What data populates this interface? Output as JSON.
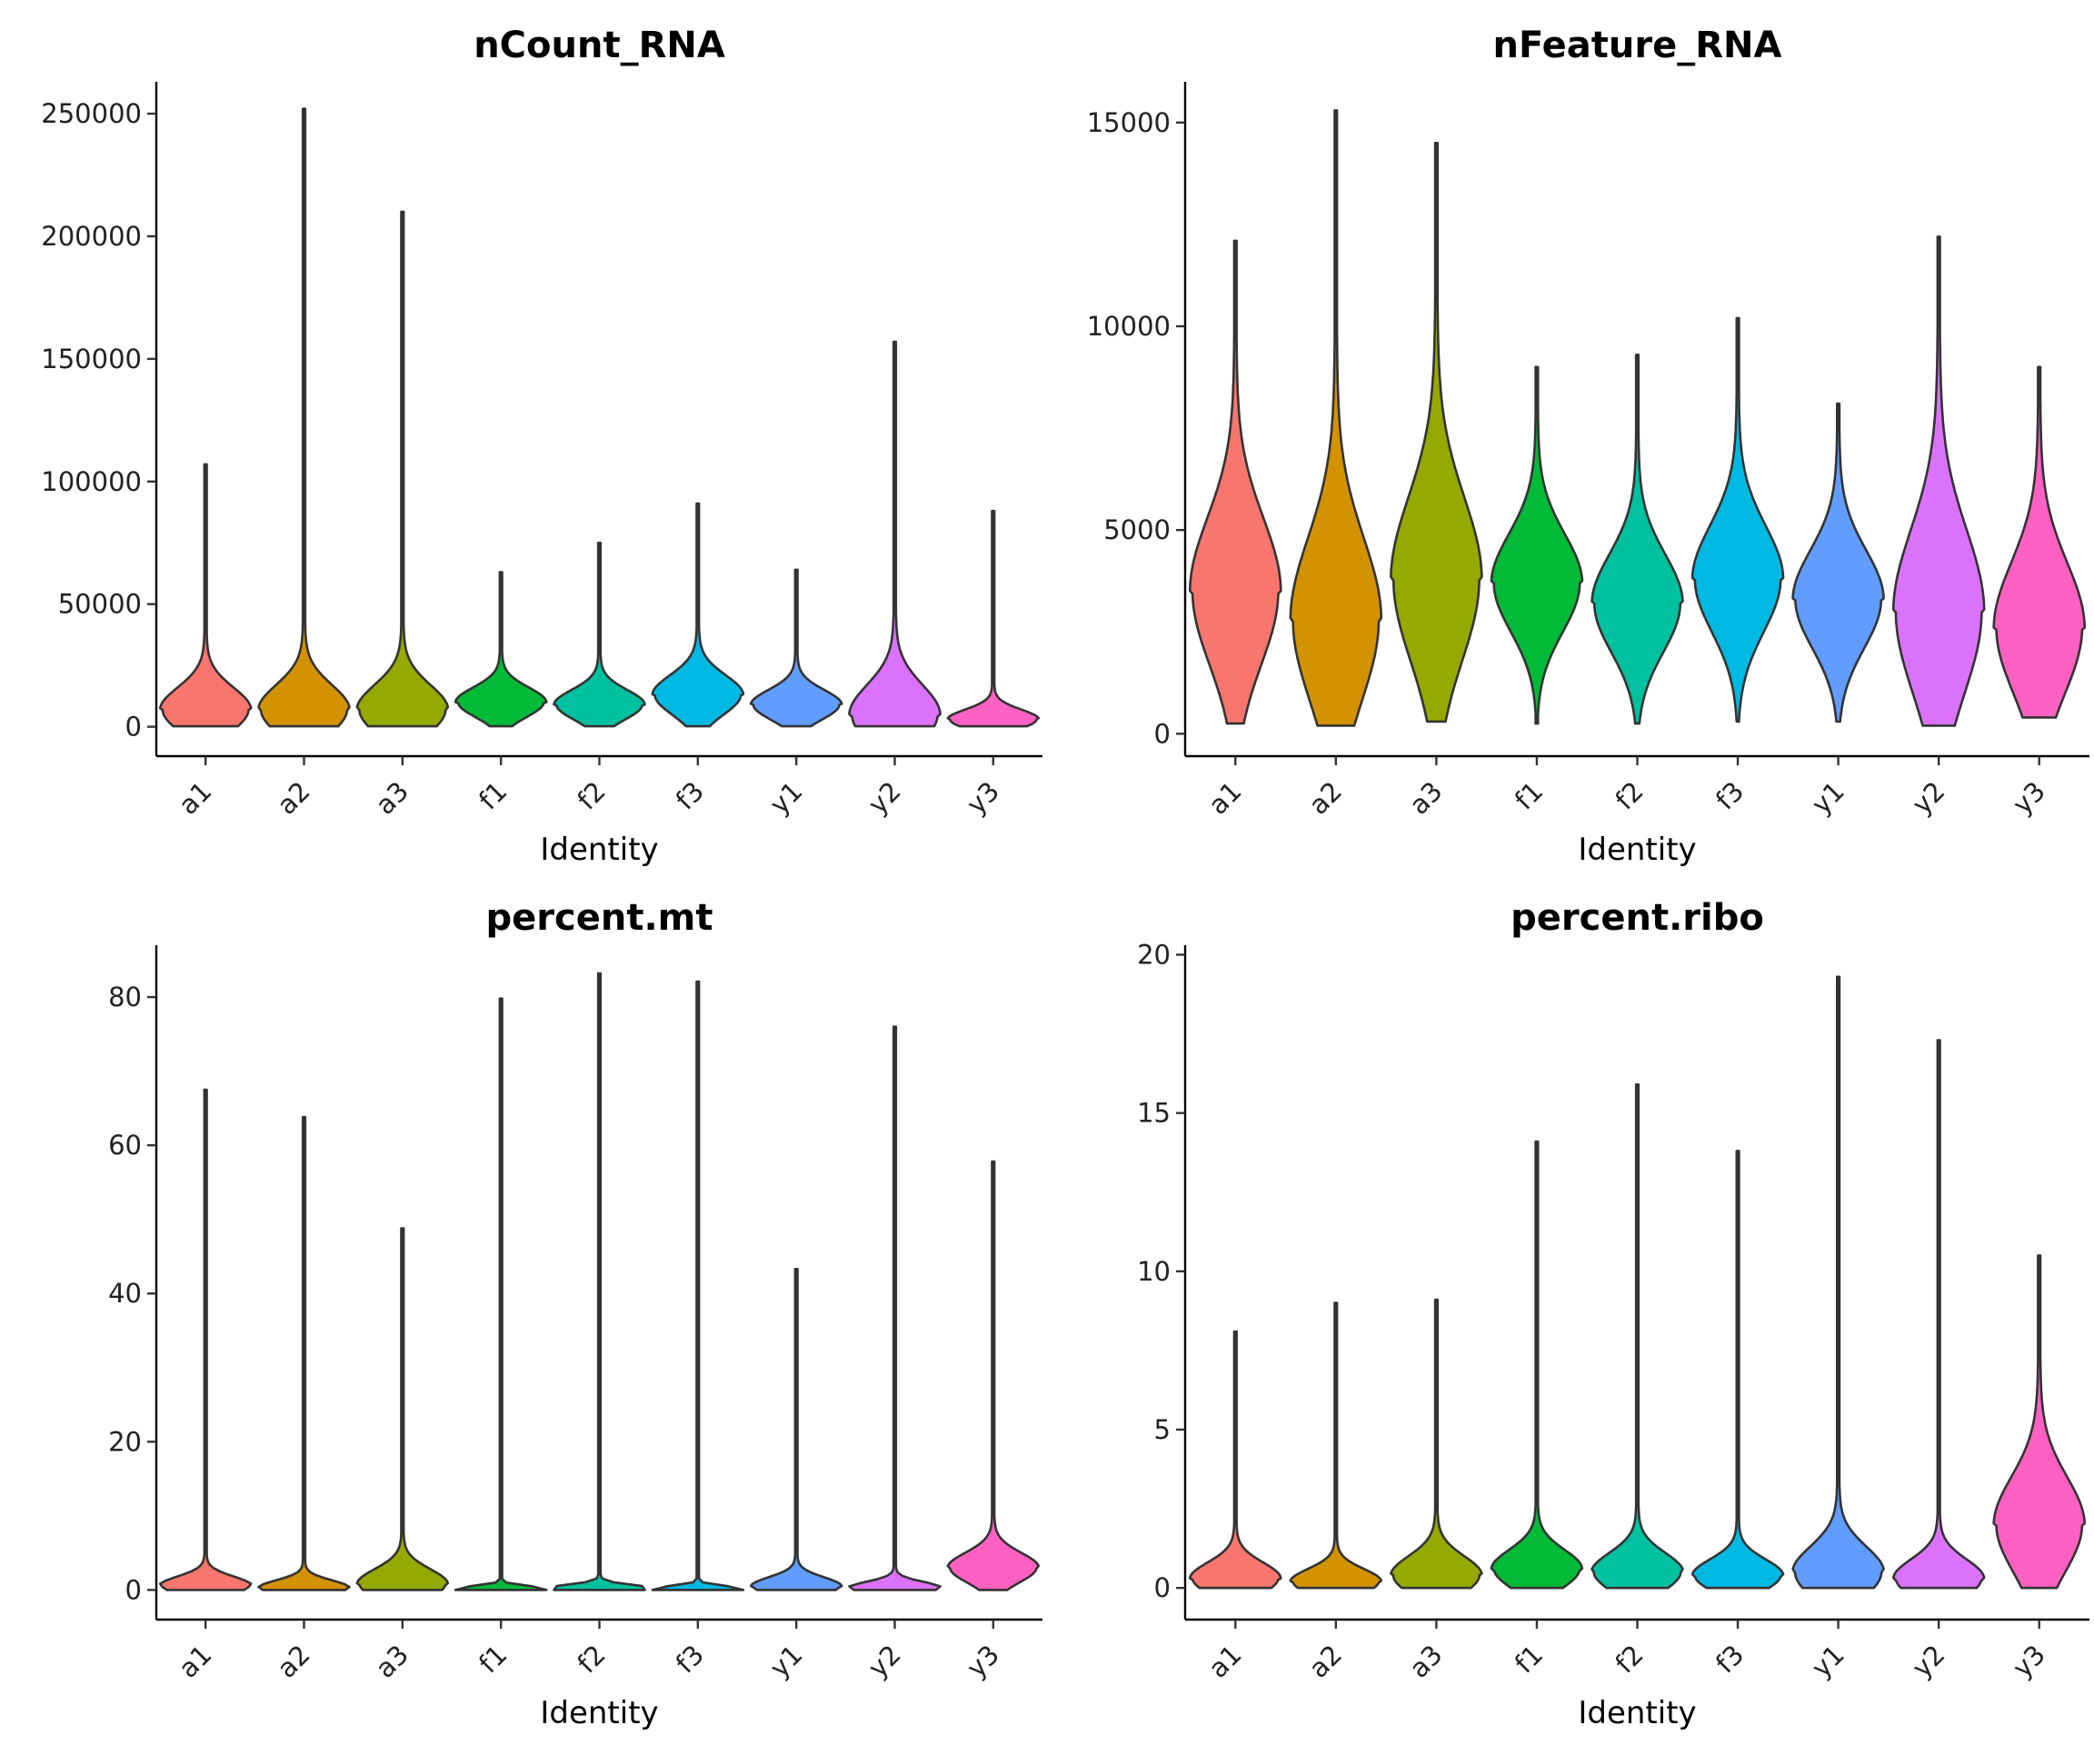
{
  "colors": {
    "a1": "#F8766D",
    "a2": "#D39200",
    "a3": "#93AA00",
    "f1": "#00BA38",
    "f2": "#00C19F",
    "f3": "#00B9E3",
    "y1": "#619CFF",
    "y2": "#DB72FB",
    "y3": "#FF61C3",
    "outline": "#333333"
  },
  "chart_data": [
    {
      "type": "violin",
      "title": "nCount_RNA",
      "xlabel": "Identity",
      "ylabel": "",
      "ylim": [
        -12000,
        263000
      ],
      "yticks": [
        0,
        50000,
        100000,
        150000,
        200000,
        250000
      ],
      "ytick_labels": [
        "0",
        "50000",
        "100000",
        "150000",
        "200000",
        "250000"
      ],
      "categories": [
        "a1",
        "a2",
        "a3",
        "f1",
        "f2",
        "f3",
        "y1",
        "y2",
        "y3"
      ],
      "series": [
        {
          "name": "a1",
          "min": 200,
          "max": 107000,
          "mode": 7000,
          "spread": 9000
        },
        {
          "name": "a2",
          "min": 200,
          "max": 252000,
          "mode": 7000,
          "spread": 10000
        },
        {
          "name": "a3",
          "min": 200,
          "max": 210000,
          "mode": 7000,
          "spread": 10000
        },
        {
          "name": "f1",
          "min": 200,
          "max": 63000,
          "mode": 10000,
          "spread": 6000
        },
        {
          "name": "f2",
          "min": 200,
          "max": 75000,
          "mode": 9000,
          "spread": 6000
        },
        {
          "name": "f3",
          "min": 200,
          "max": 91000,
          "mode": 13000,
          "spread": 8000
        },
        {
          "name": "y1",
          "min": 200,
          "max": 64000,
          "mode": 9000,
          "spread": 6000
        },
        {
          "name": "y2",
          "min": 200,
          "max": 157000,
          "mode": 5000,
          "spread": 12000
        },
        {
          "name": "y3",
          "min": 200,
          "max": 88000,
          "mode": 3000,
          "spread": 4000
        }
      ]
    },
    {
      "type": "violin",
      "title": "nFeature_RNA",
      "xlabel": "Identity",
      "ylabel": "",
      "ylim": [
        -550,
        16000
      ],
      "yticks": [
        0,
        5000,
        10000,
        15000
      ],
      "ytick_labels": [
        "0",
        "5000",
        "10000",
        "15000"
      ],
      "categories": [
        "a1",
        "a2",
        "a3",
        "f1",
        "f2",
        "f3",
        "y1",
        "y2",
        "y3"
      ],
      "series": [
        {
          "name": "a1",
          "min": 250,
          "max": 12100,
          "mode": 3500,
          "spread": 1800
        },
        {
          "name": "a2",
          "min": 200,
          "max": 15300,
          "mode": 2800,
          "spread": 2000
        },
        {
          "name": "a3",
          "min": 300,
          "max": 14500,
          "mode": 3800,
          "spread": 2000
        },
        {
          "name": "f1",
          "min": 250,
          "max": 9000,
          "mode": 3700,
          "spread": 1200
        },
        {
          "name": "f2",
          "min": 250,
          "max": 9300,
          "mode": 3200,
          "spread": 1200
        },
        {
          "name": "f3",
          "min": 300,
          "max": 10200,
          "mode": 3800,
          "spread": 1300
        },
        {
          "name": "y1",
          "min": 300,
          "max": 8100,
          "mode": 3300,
          "spread": 1200
        },
        {
          "name": "y2",
          "min": 200,
          "max": 12200,
          "mode": 3000,
          "spread": 2000
        },
        {
          "name": "y3",
          "min": 400,
          "max": 9000,
          "mode": 2600,
          "spread": 1600
        }
      ]
    },
    {
      "type": "violin",
      "title": "percent.mt",
      "xlabel": "Identity",
      "ylabel": "",
      "ylim": [
        -4,
        87
      ],
      "yticks": [
        0,
        20,
        40,
        60,
        80
      ],
      "ytick_labels": [
        "0",
        "20",
        "40",
        "60",
        "80"
      ],
      "categories": [
        "a1",
        "a2",
        "a3",
        "f1",
        "f2",
        "f3",
        "y1",
        "y2",
        "y3"
      ],
      "series": [
        {
          "name": "a1",
          "min": 0,
          "max": 67.5,
          "mode": 0.6,
          "spread": 1.2
        },
        {
          "name": "a2",
          "min": 0,
          "max": 63.8,
          "mode": 0.3,
          "spread": 1.0
        },
        {
          "name": "a3",
          "min": 0,
          "max": 48.8,
          "mode": 0.8,
          "spread": 2.0
        },
        {
          "name": "f1",
          "min": 0,
          "max": 79.8,
          "mode": 0.1,
          "spread": 0.4
        },
        {
          "name": "f2",
          "min": 0,
          "max": 83.2,
          "mode": 0.2,
          "spread": 0.5
        },
        {
          "name": "f3",
          "min": 0,
          "max": 82.1,
          "mode": 0.1,
          "spread": 0.4
        },
        {
          "name": "y1",
          "min": 0,
          "max": 43.3,
          "mode": 0.5,
          "spread": 1.2
        },
        {
          "name": "y2",
          "min": 0,
          "max": 76.0,
          "mode": 0.3,
          "spread": 0.8
        },
        {
          "name": "y3",
          "min": 0,
          "max": 57.8,
          "mode": 3.0,
          "spread": 2.0
        }
      ]
    },
    {
      "type": "violin",
      "title": "percent.ribo",
      "xlabel": "Identity",
      "ylabel": "",
      "ylim": [
        -1,
        20.3
      ],
      "yticks": [
        0,
        5,
        10,
        15,
        20
      ],
      "ytick_labels": [
        "0",
        "5",
        "10",
        "15",
        "20"
      ],
      "categories": [
        "a1",
        "a2",
        "a3",
        "f1",
        "f2",
        "f3",
        "y1",
        "y2",
        "y3"
      ],
      "series": [
        {
          "name": "a1",
          "min": 0,
          "max": 8.1,
          "mode": 0.3,
          "spread": 0.5
        },
        {
          "name": "a2",
          "min": 0,
          "max": 9.0,
          "mode": 0.2,
          "spread": 0.4
        },
        {
          "name": "a3",
          "min": 0,
          "max": 9.1,
          "mode": 0.4,
          "spread": 0.6
        },
        {
          "name": "f1",
          "min": 0,
          "max": 14.1,
          "mode": 0.6,
          "spread": 0.6
        },
        {
          "name": "f2",
          "min": 0,
          "max": 15.9,
          "mode": 0.5,
          "spread": 0.6
        },
        {
          "name": "f3",
          "min": 0,
          "max": 13.8,
          "mode": 0.4,
          "spread": 0.5
        },
        {
          "name": "y1",
          "min": 0,
          "max": 19.3,
          "mode": 0.5,
          "spread": 0.8
        },
        {
          "name": "y2",
          "min": 0,
          "max": 17.3,
          "mode": 0.3,
          "spread": 0.6
        },
        {
          "name": "y3",
          "min": 0,
          "max": 10.5,
          "mode": 2.0,
          "spread": 1.5
        }
      ]
    }
  ]
}
